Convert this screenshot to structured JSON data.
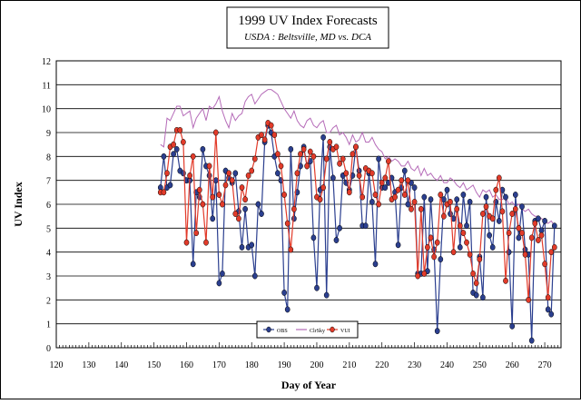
{
  "chart_data": {
    "type": "line",
    "title": "1999 UV Index Forecasts",
    "subtitle": "USDA : Beltsville, MD vs. DCA",
    "xlabel": "Day of Year",
    "ylabel": "UV Index",
    "xlim": [
      120,
      275
    ],
    "ylim": [
      0,
      12
    ],
    "x_ticks": [
      120,
      130,
      140,
      150,
      160,
      170,
      180,
      190,
      200,
      210,
      220,
      230,
      240,
      250,
      260,
      270
    ],
    "y_ticks": [
      0,
      1,
      2,
      3,
      4,
      5,
      6,
      7,
      8,
      9,
      10,
      11,
      12
    ],
    "grid": "horizontal",
    "legend_position": "bottom-center",
    "colors": {
      "obs": "#2b3f8f",
      "clrsky": "#b56bb8",
      "vui": "#e23b2a"
    },
    "legend": [
      {
        "key": "obs",
        "label": "OBS"
      },
      {
        "key": "clrsky",
        "label": "ClrSky"
      },
      {
        "key": "vui",
        "label": "VUI"
      }
    ],
    "series": [
      {
        "key": "obs",
        "name": "OBS",
        "x": [
          152,
          153,
          154,
          155,
          156,
          157,
          158,
          159,
          160,
          161,
          162,
          163,
          164,
          165,
          166,
          167,
          168,
          169,
          170,
          171,
          172,
          173,
          174,
          175,
          176,
          177,
          178,
          179,
          180,
          181,
          182,
          183,
          184,
          185,
          186,
          187,
          188,
          189,
          190,
          191,
          192,
          193,
          194,
          195,
          196,
          197,
          198,
          199,
          200,
          201,
          202,
          203,
          204,
          205,
          206,
          207,
          208,
          209,
          210,
          211,
          212,
          213,
          214,
          215,
          216,
          217,
          218,
          219,
          220,
          221,
          222,
          223,
          224,
          225,
          226,
          227,
          228,
          229,
          230,
          231,
          232,
          233,
          234,
          235,
          236,
          237,
          238,
          239,
          240,
          241,
          242,
          243,
          244,
          245,
          246,
          247,
          248,
          249,
          250,
          251,
          252,
          253,
          254,
          255,
          256,
          257,
          258,
          259,
          260,
          261,
          262,
          263,
          264,
          265,
          266,
          267,
          268,
          269,
          270,
          271,
          272,
          273
        ],
        "values": [
          6.7,
          8.0,
          6.7,
          6.8,
          8.1,
          8.3,
          7.4,
          7.3,
          7.0,
          7.0,
          3.5,
          6.5,
          6.3,
          8.3,
          7.6,
          7.2,
          5.4,
          7.0,
          2.7,
          3.1,
          7.4,
          7.1,
          6.9,
          7.3,
          5.7,
          4.2,
          5.8,
          4.2,
          4.3,
          3.0,
          6.0,
          5.6,
          8.6,
          9.3,
          9.0,
          8.0,
          7.3,
          7.0,
          2.3,
          1.6,
          8.3,
          5.4,
          6.5,
          7.6,
          8.4,
          7.6,
          7.8,
          4.6,
          2.5,
          6.6,
          8.8,
          2.2,
          8.4,
          7.1,
          4.5,
          5.0,
          7.2,
          6.9,
          6.6,
          7.2,
          8.4,
          7.4,
          5.1,
          5.1,
          7.3,
          6.1,
          3.5,
          7.9,
          6.7,
          6.7,
          6.9,
          7.1,
          6.5,
          4.3,
          6.7,
          7.4,
          6.0,
          6.9,
          6.7,
          3.1,
          3.1,
          6.3,
          3.2,
          6.2,
          4.1,
          0.7,
          3.7,
          6.2,
          6.6,
          5.6,
          5.4,
          6.2,
          4.2,
          6.4,
          5.1,
          6.1,
          2.3,
          2.2,
          3.8,
          2.1,
          6.3,
          4.7,
          4.2,
          6.1,
          5.3,
          6.6,
          6.3,
          4.0,
          0.9,
          6.4,
          4.6,
          5.9,
          4.1,
          3.9,
          0.3,
          5.3,
          5.4,
          4.9,
          5.3,
          1.6,
          1.4,
          5.1
        ]
      },
      {
        "key": "clrsky",
        "name": "ClrSky",
        "x": [
          152,
          153,
          154,
          155,
          156,
          157,
          158,
          159,
          160,
          161,
          162,
          163,
          164,
          165,
          166,
          167,
          168,
          169,
          170,
          171,
          172,
          173,
          174,
          175,
          176,
          177,
          178,
          179,
          180,
          181,
          182,
          183,
          184,
          185,
          186,
          187,
          188,
          189,
          190,
          191,
          192,
          193,
          194,
          195,
          196,
          197,
          198,
          199,
          200,
          201,
          202,
          203,
          204,
          205,
          206,
          207,
          208,
          209,
          210,
          211,
          212,
          213,
          214,
          215,
          216,
          217,
          218,
          219,
          220,
          221,
          222,
          223,
          224,
          225,
          226,
          227,
          228,
          229,
          230,
          231,
          232,
          233,
          234,
          235,
          236,
          237,
          238,
          239,
          240,
          241,
          242,
          243,
          244,
          245,
          246,
          247,
          248,
          249,
          250,
          251,
          252,
          253,
          254,
          255,
          256,
          257,
          258,
          259,
          260,
          261,
          262,
          263,
          264,
          265,
          266,
          267,
          268,
          269,
          270,
          271,
          272,
          273
        ],
        "values": [
          8.5,
          8.4,
          9.6,
          9.5,
          9.8,
          10.1,
          10.1,
          9.7,
          9.8,
          9.9,
          9.2,
          9.6,
          9.8,
          10.0,
          9.5,
          10.1,
          10.0,
          10.2,
          10.5,
          9.9,
          9.5,
          9.2,
          9.8,
          9.5,
          9.7,
          9.8,
          10.3,
          10.5,
          10.6,
          10.2,
          10.4,
          10.6,
          10.7,
          10.8,
          10.8,
          10.7,
          10.6,
          10.3,
          10.0,
          9.8,
          9.6,
          9.9,
          9.5,
          9.3,
          9.2,
          9.5,
          9.6,
          9.3,
          9.2,
          9.4,
          9.5,
          9.0,
          9.0,
          9.2,
          9.3,
          8.9,
          9.0,
          8.8,
          8.5,
          8.9,
          8.6,
          8.7,
          9.0,
          8.6,
          8.6,
          8.8,
          8.5,
          8.3,
          8.2,
          7.9,
          8.0,
          7.8,
          7.9,
          7.8,
          7.6,
          7.6,
          7.8,
          7.5,
          7.4,
          7.6,
          7.2,
          7.5,
          7.2,
          7.3,
          7.1,
          7.0,
          7.2,
          6.9,
          6.9,
          7.1,
          7.0,
          6.8,
          6.7,
          6.9,
          6.6,
          6.7,
          6.8,
          6.5,
          6.3,
          6.6,
          6.5,
          6.6,
          6.3,
          6.4,
          6.2,
          6.2,
          6.3,
          6.0,
          6.1,
          5.9,
          6.0,
          5.8,
          5.7,
          5.8,
          5.6,
          5.5,
          5.5,
          5.4,
          5.3,
          5.2,
          5.3,
          5.1
        ]
      },
      {
        "key": "vui",
        "name": "VUI",
        "x": [
          152,
          153,
          154,
          155,
          156,
          157,
          158,
          159,
          160,
          161,
          162,
          163,
          164,
          165,
          166,
          167,
          168,
          169,
          170,
          171,
          172,
          173,
          174,
          175,
          176,
          177,
          178,
          179,
          180,
          181,
          182,
          183,
          184,
          185,
          186,
          187,
          188,
          189,
          190,
          191,
          192,
          193,
          194,
          195,
          196,
          197,
          198,
          199,
          200,
          201,
          202,
          203,
          204,
          205,
          206,
          207,
          208,
          209,
          210,
          211,
          212,
          213,
          214,
          215,
          216,
          217,
          218,
          219,
          220,
          221,
          222,
          223,
          224,
          225,
          226,
          227,
          228,
          229,
          230,
          231,
          232,
          233,
          234,
          235,
          236,
          237,
          238,
          239,
          240,
          241,
          242,
          243,
          244,
          245,
          246,
          247,
          248,
          249,
          250,
          251,
          252,
          253,
          254,
          255,
          256,
          257,
          258,
          259,
          260,
          261,
          262,
          263,
          264,
          265,
          266,
          267,
          268,
          269,
          270,
          271,
          272,
          273
        ],
        "values": [
          6.5,
          6.5,
          7.3,
          8.4,
          8.5,
          9.1,
          9.1,
          8.6,
          4.4,
          7.2,
          8.0,
          4.8,
          6.6,
          6.0,
          4.4,
          7.6,
          6.3,
          9.0,
          6.4,
          6.0,
          6.8,
          7.3,
          7.0,
          5.6,
          5.4,
          6.7,
          6.2,
          7.2,
          7.4,
          7.9,
          8.8,
          8.9,
          8.7,
          9.4,
          9.3,
          8.9,
          8.1,
          7.6,
          6.4,
          5.2,
          4.1,
          5.8,
          7.3,
          8.1,
          8.3,
          7.6,
          8.2,
          8.0,
          6.3,
          6.2,
          6.7,
          7.9,
          8.6,
          8.3,
          8.4,
          7.7,
          7.9,
          7.3,
          6.5,
          8.1,
          8.4,
          7.2,
          6.3,
          7.5,
          7.4,
          7.3,
          6.4,
          6.0,
          6.9,
          7.1,
          7.8,
          6.2,
          6.3,
          6.6,
          7.0,
          6.4,
          7.0,
          5.8,
          6.1,
          3.0,
          5.8,
          3.1,
          4.2,
          4.6,
          3.8,
          4.4,
          6.4,
          5.5,
          6.0,
          6.1,
          4.0,
          5.8,
          5.1,
          4.8,
          4.4,
          3.9,
          3.1,
          2.7,
          3.7,
          5.6,
          5.9,
          5.5,
          5.4,
          6.6,
          7.1,
          5.7,
          2.8,
          4.8,
          5.6,
          5.8,
          5.0,
          4.8,
          3.9,
          2.0,
          4.6,
          5.2,
          4.5,
          4.7,
          3.5,
          2.1,
          4.0,
          4.2
        ]
      }
    ]
  }
}
